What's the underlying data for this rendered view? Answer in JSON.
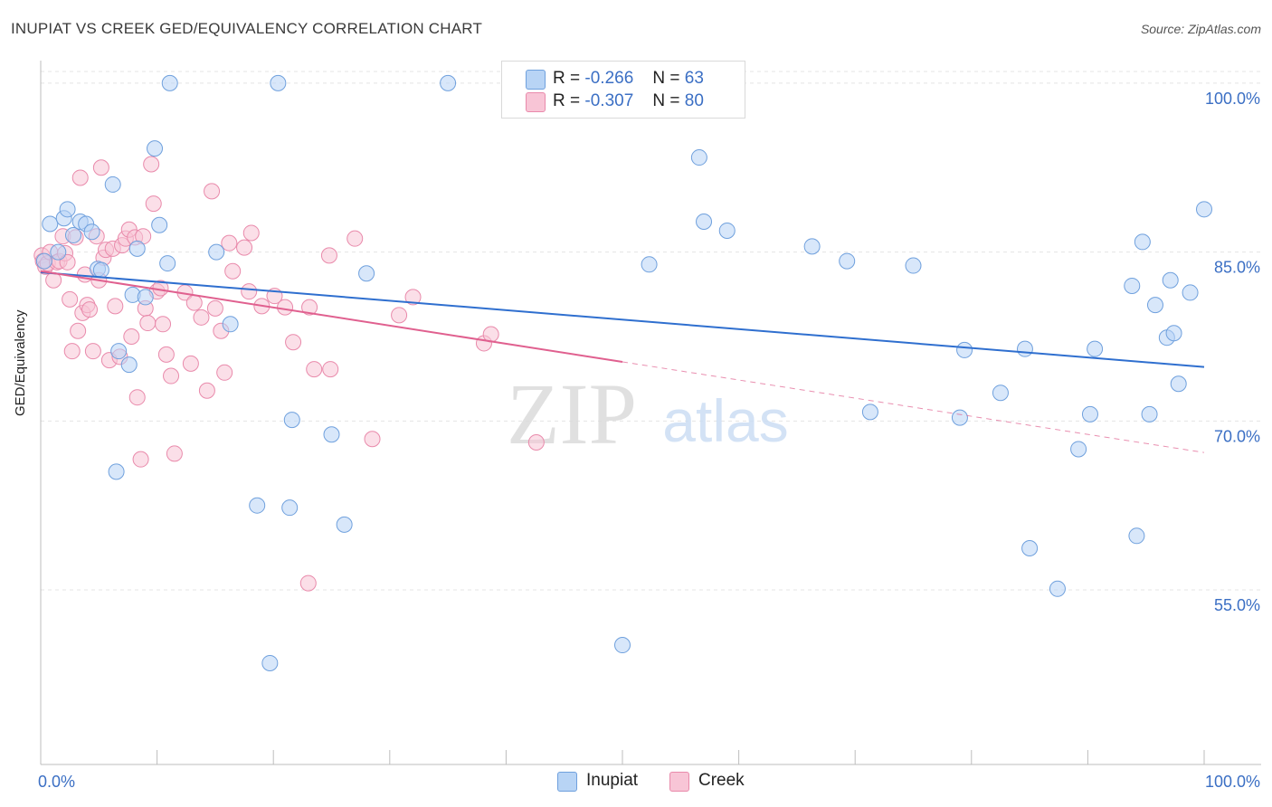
{
  "title": "INUPIAT VS CREEK GED/EQUIVALENCY CORRELATION CHART",
  "source": "Source: ZipAtlas.com",
  "watermark": {
    "zip": "ZIP",
    "atlas": "atlas"
  },
  "legend": {
    "r_label": "R =",
    "n_label": "N =",
    "rows": [
      {
        "series": "Inupiat",
        "r": "-0.266",
        "n": "63"
      },
      {
        "series": "Creek",
        "r": "-0.307",
        "n": "80"
      }
    ]
  },
  "colors": {
    "inupiat_fill": "#b8d4f5",
    "inupiat_stroke": "#6fa0dd",
    "inupiat_line": "#2f6fcf",
    "creek_fill": "#f8c5d6",
    "creek_stroke": "#e98aab",
    "creek_line": "#e0608f",
    "tick_label": "#3b6fc4",
    "grid": "#e4e4e4"
  },
  "chart_data": {
    "type": "scatter",
    "title": "INUPIAT VS CREEK GED/EQUIVALENCY CORRELATION CHART",
    "ylabel": "GED/Equivalency",
    "xlabel": "",
    "xlim": [
      0,
      100
    ],
    "ylim": [
      39.5,
      102
    ],
    "x_tick_labels": [
      "0.0%",
      "100.0%"
    ],
    "y_ticks": [
      55,
      70,
      85,
      100
    ],
    "y_tick_labels": [
      "55.0%",
      "70.0%",
      "85.0%",
      "100.0%"
    ],
    "grid": true,
    "series": [
      {
        "name": "Inupiat",
        "r": -0.266,
        "n": 63,
        "trend": {
          "x": [
            0,
            100
          ],
          "y": [
            83.2,
            74.8
          ],
          "dashed_from": null
        },
        "points": [
          [
            0.3,
            84.2
          ],
          [
            0.8,
            87.5
          ],
          [
            1.5,
            85
          ],
          [
            2,
            88
          ],
          [
            2.3,
            88.8
          ],
          [
            2.8,
            86.5
          ],
          [
            3.4,
            87.7
          ],
          [
            3.9,
            87.5
          ],
          [
            4.4,
            86.8
          ],
          [
            4.9,
            83.5
          ],
          [
            5.2,
            83.4
          ],
          [
            6.2,
            91
          ],
          [
            6.5,
            65.5
          ],
          [
            6.7,
            76.2
          ],
          [
            7.6,
            75
          ],
          [
            7.9,
            81.2
          ],
          [
            8.3,
            85.3
          ],
          [
            9,
            81
          ],
          [
            9.8,
            94.2
          ],
          [
            10.2,
            87.4
          ],
          [
            10.9,
            84
          ],
          [
            11.1,
            100
          ],
          [
            15.1,
            85
          ],
          [
            16.3,
            78.6
          ],
          [
            18.6,
            62.5
          ],
          [
            19.7,
            48.5
          ],
          [
            20.4,
            100
          ],
          [
            21.4,
            62.3
          ],
          [
            21.6,
            70.1
          ],
          [
            25,
            68.8
          ],
          [
            26.1,
            60.8
          ],
          [
            28,
            83.1
          ],
          [
            35,
            100
          ],
          [
            47.3,
            99.9
          ],
          [
            50,
            50.1
          ],
          [
            52.3,
            83.9
          ],
          [
            56.6,
            93.4
          ],
          [
            57,
            87.7
          ],
          [
            59,
            86.9
          ],
          [
            66.3,
            85.5
          ],
          [
            69.3,
            84.2
          ],
          [
            71.3,
            70.8
          ],
          [
            75,
            83.8
          ],
          [
            79,
            70.3
          ],
          [
            79.4,
            76.3
          ],
          [
            82.5,
            72.5
          ],
          [
            84.6,
            76.4
          ],
          [
            85,
            58.7
          ],
          [
            87.4,
            55.1
          ],
          [
            89.2,
            67.5
          ],
          [
            90.2,
            70.6
          ],
          [
            90.6,
            76.4
          ],
          [
            93.8,
            82
          ],
          [
            94.2,
            59.8
          ],
          [
            94.7,
            85.9
          ],
          [
            95.3,
            70.6
          ],
          [
            95.8,
            80.3
          ],
          [
            96.8,
            77.4
          ],
          [
            97.1,
            82.5
          ],
          [
            97.4,
            77.8
          ],
          [
            97.8,
            73.3
          ],
          [
            98.8,
            81.4
          ],
          [
            100,
            88.8
          ]
        ]
      },
      {
        "name": "Creek",
        "r": -0.307,
        "n": 80,
        "trend": {
          "x": [
            0,
            100
          ],
          "y": [
            83.3,
            67.2
          ],
          "dashed_from": 50
        },
        "points": [
          [
            0.1,
            84.7
          ],
          [
            0.2,
            84.2
          ],
          [
            0.4,
            83.7
          ],
          [
            0.6,
            84
          ],
          [
            0.8,
            85
          ],
          [
            1.1,
            82.5
          ],
          [
            1.4,
            84.1
          ],
          [
            1.6,
            84.2
          ],
          [
            1.9,
            86.4
          ],
          [
            2.1,
            84.9
          ],
          [
            2.3,
            84.1
          ],
          [
            2.5,
            80.8
          ],
          [
            2.7,
            76.2
          ],
          [
            3,
            86.3
          ],
          [
            3.2,
            78
          ],
          [
            3.4,
            91.6
          ],
          [
            3.6,
            79.6
          ],
          [
            3.8,
            83
          ],
          [
            4,
            80.3
          ],
          [
            4.2,
            79.9
          ],
          [
            4.5,
            76.2
          ],
          [
            4.8,
            86.4
          ],
          [
            5,
            82.5
          ],
          [
            5.2,
            92.5
          ],
          [
            5.4,
            84.5
          ],
          [
            5.6,
            85.2
          ],
          [
            5.9,
            75.4
          ],
          [
            6.2,
            85.3
          ],
          [
            6.4,
            80.2
          ],
          [
            6.8,
            75.7
          ],
          [
            7,
            85.6
          ],
          [
            7.3,
            86.2
          ],
          [
            7.6,
            87
          ],
          [
            7.8,
            77.5
          ],
          [
            8.1,
            86.3
          ],
          [
            8.3,
            72.1
          ],
          [
            8.6,
            66.6
          ],
          [
            8.8,
            86.4
          ],
          [
            9,
            80
          ],
          [
            9.2,
            78.7
          ],
          [
            9.5,
            92.8
          ],
          [
            9.7,
            89.3
          ],
          [
            10,
            81.5
          ],
          [
            10.3,
            81.8
          ],
          [
            10.5,
            78.6
          ],
          [
            10.8,
            75.9
          ],
          [
            11.2,
            74
          ],
          [
            11.5,
            67.1
          ],
          [
            12.4,
            81.4
          ],
          [
            12.9,
            75.1
          ],
          [
            13.2,
            80.5
          ],
          [
            13.8,
            79.2
          ],
          [
            14.3,
            72.7
          ],
          [
            14.7,
            90.4
          ],
          [
            15,
            80
          ],
          [
            15.5,
            78
          ],
          [
            15.8,
            74.3
          ],
          [
            16.2,
            85.8
          ],
          [
            16.5,
            83.3
          ],
          [
            17.5,
            85.4
          ],
          [
            17.9,
            81.5
          ],
          [
            18.1,
            86.7
          ],
          [
            19,
            80.2
          ],
          [
            20.1,
            81.1
          ],
          [
            21,
            80.1
          ],
          [
            21.7,
            77
          ],
          [
            23,
            55.6
          ],
          [
            23.1,
            80.1
          ],
          [
            23.5,
            74.6
          ],
          [
            24.8,
            84.7
          ],
          [
            24.9,
            74.6
          ],
          [
            27,
            86.2
          ],
          [
            28.5,
            68.4
          ],
          [
            30.8,
            79.4
          ],
          [
            32,
            81
          ],
          [
            38.1,
            76.9
          ],
          [
            38.7,
            77.7
          ],
          [
            42.6,
            68.1
          ],
          [
            45,
            100
          ],
          [
            47,
            98
          ]
        ]
      }
    ]
  }
}
